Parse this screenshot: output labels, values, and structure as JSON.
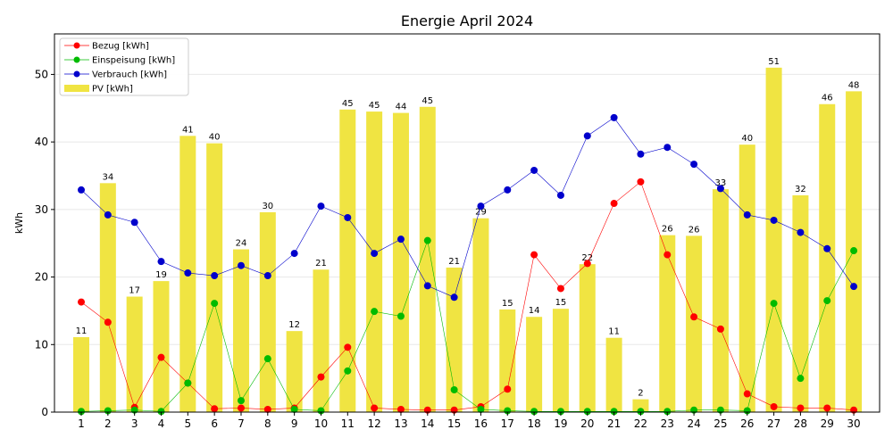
{
  "chart_data": {
    "type": "bar",
    "title": "Energie April 2024",
    "xlabel": "",
    "ylabel": "kWh",
    "ylim": [
      0,
      56
    ],
    "yticks": [
      0,
      10,
      20,
      30,
      40,
      50
    ],
    "grid": "horizontal",
    "legend_position": "top-left",
    "categories": [
      "1",
      "2",
      "3",
      "4",
      "5",
      "6",
      "7",
      "8",
      "9",
      "10",
      "11",
      "12",
      "13",
      "14",
      "15",
      "16",
      "17",
      "18",
      "19",
      "20",
      "21",
      "22",
      "23",
      "24",
      "25",
      "26",
      "27",
      "28",
      "29",
      "30"
    ],
    "bars": {
      "name": "PV [kWh]",
      "color": "#f0e442",
      "values": [
        11.1,
        33.9,
        17.1,
        19.4,
        40.9,
        39.8,
        24.1,
        29.6,
        12.0,
        21.1,
        44.8,
        44.5,
        44.3,
        45.2,
        21.4,
        28.7,
        15.2,
        14.1,
        15.3,
        21.9,
        11.0,
        1.9,
        26.2,
        26.1,
        33.0,
        39.6,
        51.0,
        32.1,
        45.6,
        47.5
      ],
      "labels": [
        "11",
        "34",
        "17",
        "19",
        "41",
        "40",
        "24",
        "30",
        "12",
        "21",
        "45",
        "45",
        "44",
        "45",
        "21",
        "29",
        "15",
        "14",
        "15",
        "22",
        "11",
        "2",
        "26",
        "26",
        "33",
        "40",
        "51",
        "32",
        "46",
        "48"
      ]
    },
    "series": [
      {
        "name": "Bezug [kWh]",
        "color": "#ff0000",
        "values": [
          16.3,
          13.3,
          0.7,
          8.1,
          4.3,
          0.5,
          0.6,
          0.4,
          0.6,
          5.2,
          9.6,
          0.6,
          0.4,
          0.3,
          0.3,
          0.8,
          3.4,
          23.3,
          18.3,
          22.0,
          30.9,
          34.1,
          23.3,
          14.1,
          12.3,
          2.7,
          0.8,
          0.6,
          0.6,
          0.3
        ]
      },
      {
        "name": "Einspeisung [kWh]",
        "color": "#00bb00",
        "values": [
          0.1,
          0.2,
          0.3,
          0.1,
          4.3,
          16.1,
          1.7,
          7.9,
          0.4,
          0.2,
          6.1,
          14.9,
          14.2,
          25.4,
          3.3,
          0.4,
          0.2,
          0.1,
          0.1,
          0.1,
          0.1,
          0.1,
          0.1,
          0.3,
          0.3,
          0.2,
          16.1,
          5.0,
          16.5,
          23.9
        ]
      },
      {
        "name": "Verbrauch [kWh]",
        "color": "#0000cc",
        "values": [
          32.9,
          29.2,
          28.1,
          22.3,
          20.6,
          20.2,
          21.7,
          20.2,
          23.5,
          30.5,
          28.8,
          23.5,
          25.6,
          18.7,
          17.0,
          30.5,
          32.9,
          35.8,
          32.1,
          40.9,
          43.6,
          38.2,
          39.2,
          36.7,
          33.1,
          29.2,
          28.4,
          26.6,
          24.2,
          18.6
        ]
      }
    ],
    "legend_order": [
      "Bezug [kWh]",
      "Einspeisung [kWh]",
      "Verbrauch [kWh]",
      "PV [kWh]"
    ]
  }
}
